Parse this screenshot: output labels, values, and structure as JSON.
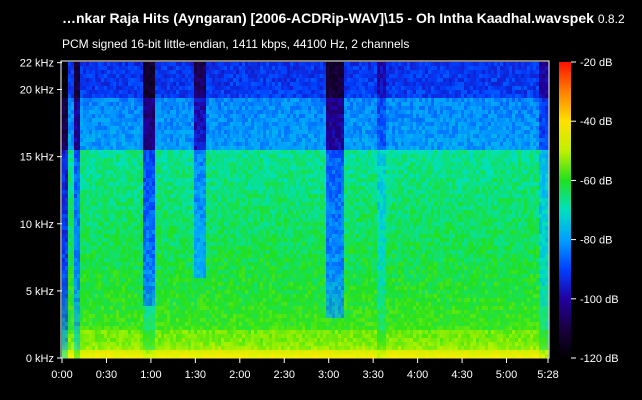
{
  "header": {
    "file_title": "…nkar Raja Hits (Ayngaran) [2006-ACDRip-WAV]\\15 - Oh Intha Kaadhal.wav",
    "app_name": "spek",
    "app_version": "0.8.2",
    "format_info": "PCM signed 16-bit little-endian, 1411 kbps, 44100 Hz, 2 channels"
  },
  "chart_data": {
    "type": "heatmap",
    "x_ticks": [
      "0:00",
      "0:30",
      "1:00",
      "1:30",
      "2:00",
      "2:30",
      "3:00",
      "3:30",
      "4:00",
      "4:30",
      "5:00",
      "5:28"
    ],
    "x_tick_seconds": [
      0,
      30,
      60,
      90,
      120,
      150,
      180,
      210,
      240,
      270,
      300,
      328
    ],
    "x_range_seconds": [
      0,
      328
    ],
    "y_ticks": [
      "0 kHz",
      "5 kHz",
      "10 kHz",
      "15 kHz",
      "20 kHz",
      "22 kHz"
    ],
    "y_tick_khz": [
      0,
      5,
      10,
      15,
      20,
      22
    ],
    "y_range_khz": [
      0,
      22.05
    ],
    "colorbar_ticks": [
      "-20 dB",
      "-40 dB",
      "-60 dB",
      "-80 dB",
      "-100 dB",
      "-120 dB"
    ],
    "colorbar_db": [
      -20,
      -40,
      -60,
      -80,
      -100,
      -120
    ],
    "colorbar_range_db": [
      -120,
      -20
    ]
  },
  "colors": {
    "background": "#000000",
    "text": "#ffffff",
    "scale": [
      "#000000",
      "#1a0040",
      "#2200a0",
      "#0040ff",
      "#00a0ff",
      "#00e0c0",
      "#20e020",
      "#c0f000",
      "#ffe000",
      "#ff8000",
      "#ff1000"
    ]
  }
}
